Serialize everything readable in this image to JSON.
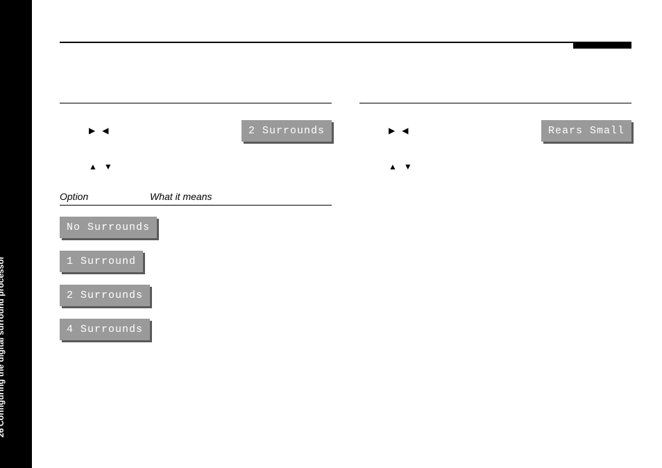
{
  "sidebar": {
    "section_title": "Configuring the digital surround processor",
    "page_number": "26"
  },
  "left_column": {
    "display_value": "2 Surrounds",
    "header_option": "Option",
    "header_meaning": "What it means",
    "options": [
      "No Surrounds",
      "1 Surround",
      "2 Surrounds",
      "4 Surrounds"
    ]
  },
  "right_column": {
    "display_value": "Rears  Small"
  },
  "glyphs": {
    "right": "▶",
    "left": "◀",
    "up": "▲",
    "down": "▼"
  },
  "colors": {
    "button_bg": "#9a9a9a",
    "button_text": "#ffffff",
    "button_shadow": "#5a5a5a",
    "sidebar_bg": "#000000",
    "sidebar_text": "#ffffff"
  }
}
